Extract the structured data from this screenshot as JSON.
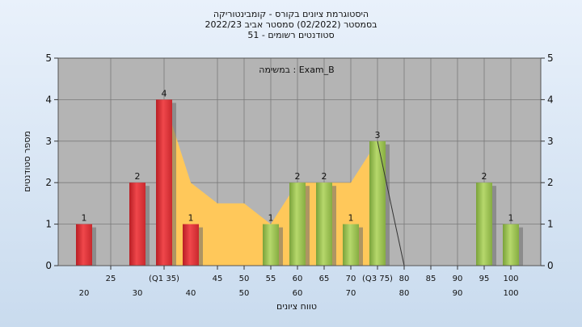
{
  "chart_data": {
    "type": "bar",
    "title_lines": [
      "היסטוגרמת ציונים בקורס - קומבינטוריקה",
      "בסמסטר  (02/2022)  סמסטר אביב 2022/23",
      "סטודנטים רשומים - 51"
    ],
    "annotation": "במשימה : Exam_B",
    "xlabel": "טווח ציונים",
    "ylabel": "מספר סטודנטים",
    "ylim": [
      0,
      5
    ],
    "y_ticks": [
      "0",
      "1",
      "2",
      "3",
      "4",
      "5"
    ],
    "x_ticks_bottom": [
      "20",
      "30",
      "40",
      "50",
      "60",
      "70",
      "80",
      "90",
      "100"
    ],
    "x_ticks_top": [
      "25",
      "(Q1 35)",
      "45",
      "50",
      "55",
      "60",
      "65",
      "70",
      "(Q3 75)",
      "80",
      "85",
      "90",
      "95",
      "100"
    ],
    "bars": [
      {
        "x": 20,
        "value": 1,
        "label": "1",
        "group": "red"
      },
      {
        "x": 30,
        "value": 2,
        "label": "2",
        "group": "red"
      },
      {
        "x": 35,
        "value": 4,
        "label": "4",
        "group": "red"
      },
      {
        "x": 40,
        "value": 1,
        "label": "1",
        "group": "red"
      },
      {
        "x": 55,
        "value": 1,
        "label": "1",
        "group": "green"
      },
      {
        "x": 60,
        "value": 2,
        "label": "2",
        "group": "green"
      },
      {
        "x": 65,
        "value": 2,
        "label": "2",
        "group": "green"
      },
      {
        "x": 70,
        "value": 1,
        "label": "1",
        "group": "green"
      },
      {
        "x": 75,
        "value": 3,
        "label": "3",
        "group": "green"
      },
      {
        "x": 95,
        "value": 2,
        "label": "2",
        "group": "green"
      },
      {
        "x": 100,
        "value": 1,
        "label": "1",
        "group": "green"
      }
    ],
    "area": [
      {
        "x": 35,
        "y": 4
      },
      {
        "x": 40,
        "y": 2
      },
      {
        "x": 45,
        "y": 1.5
      },
      {
        "x": 50,
        "y": 1.5
      },
      {
        "x": 55,
        "y": 1
      },
      {
        "x": 60,
        "y": 2
      },
      {
        "x": 65,
        "y": 2
      },
      {
        "x": 70,
        "y": 2
      },
      {
        "x": 75,
        "y": 3
      }
    ],
    "trend_line": [
      {
        "x": 75,
        "y": 3
      },
      {
        "x": 80,
        "y": 0
      }
    ],
    "grid": true,
    "colors": {
      "red_bar": "#e0353a",
      "green_bar": "#9cc24f",
      "area": "#ffc85a",
      "plot_bg": "#b4b4b4",
      "grid": "#7a7a7a"
    }
  }
}
